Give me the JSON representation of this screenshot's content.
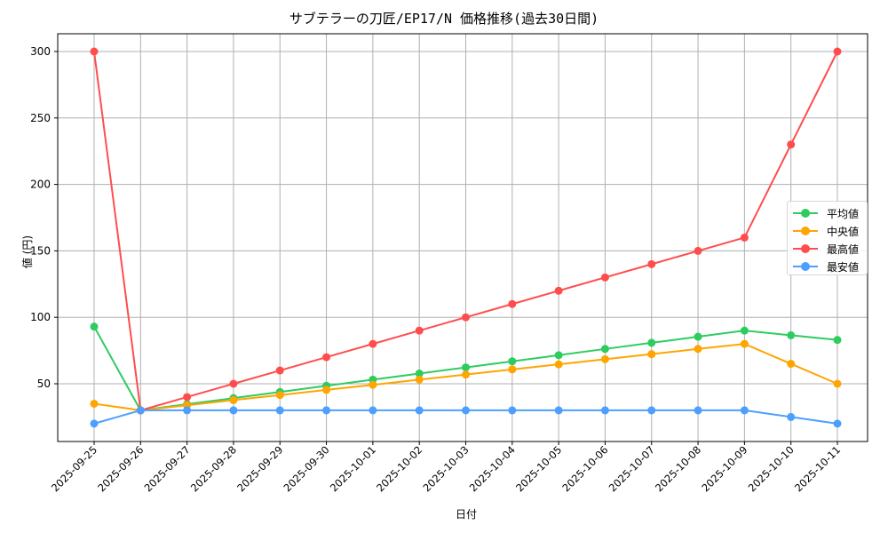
{
  "title": "サブテラーの刀匠/EP17/N 価格推移(過去30日間)",
  "legend": {
    "items": [
      {
        "label": "平均値",
        "color": "#2ecc60"
      },
      {
        "label": "中央値",
        "color": "#ffa500"
      },
      {
        "label": "最高値",
        "color": "#ff4d4d"
      },
      {
        "label": "最安値",
        "color": "#4d9fff"
      }
    ]
  },
  "chart_data": {
    "type": "line",
    "title": "サブテラーの刀匠/EP17/N 価格推移(過去30日間)",
    "xlabel": "日付",
    "ylabel": "値 (円)",
    "ylim": [
      5,
      313
    ],
    "yticks": [
      50,
      100,
      150,
      200,
      250,
      300
    ],
    "grid": true,
    "legend_position": "center right",
    "categories": [
      "2025-09-25",
      "2025-09-26",
      "2025-09-27",
      "2025-09-28",
      "2025-09-29",
      "2025-09-30",
      "2025-10-01",
      "2025-10-02",
      "2025-10-03",
      "2025-10-04",
      "2025-10-05",
      "2025-10-06",
      "2025-10-07",
      "2025-10-08",
      "2025-10-09",
      "2025-10-10",
      "2025-10-11"
    ],
    "series": [
      {
        "name": "平均値",
        "color": "#2ecc60",
        "values": [
          93,
          30,
          34.6,
          39.2,
          43.8,
          48.5,
          53.1,
          57.7,
          62.3,
          66.9,
          71.5,
          76.2,
          80.8,
          85.4,
          90,
          86.5,
          83
        ]
      },
      {
        "name": "中央値",
        "color": "#ffa500",
        "values": [
          35,
          30,
          33.8,
          37.7,
          41.5,
          45.4,
          49.2,
          53.1,
          56.9,
          60.8,
          64.6,
          68.5,
          72.3,
          76.2,
          80,
          65,
          50
        ]
      },
      {
        "name": "最高値",
        "color": "#ff4d4d",
        "values": [
          300,
          30,
          40,
          50,
          60,
          70,
          80,
          90,
          100,
          110,
          120,
          130,
          140,
          150,
          160,
          230,
          300
        ]
      },
      {
        "name": "最安値",
        "color": "#4d9fff",
        "values": [
          20,
          30,
          30,
          30,
          30,
          30,
          30,
          30,
          30,
          30,
          30,
          30,
          30,
          30,
          30,
          25,
          20
        ]
      }
    ]
  }
}
